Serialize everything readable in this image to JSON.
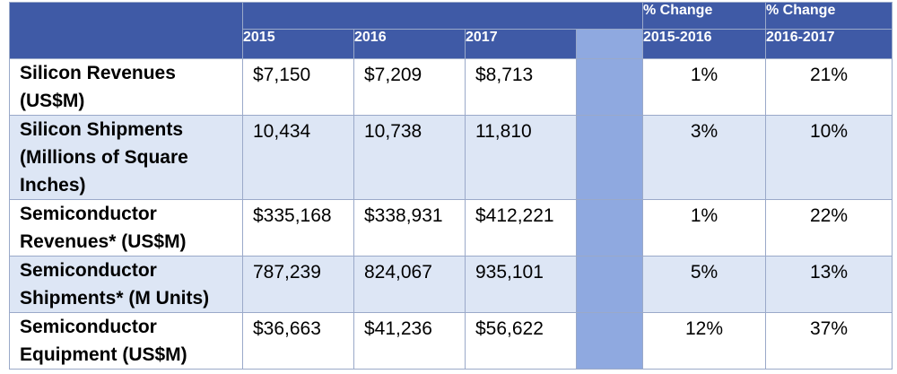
{
  "header": {
    "years": [
      "2015",
      "2016",
      "2017"
    ],
    "pct_change_label": "% Change",
    "pct_ranges": [
      "2015-2016",
      "2016-2017"
    ]
  },
  "rows": [
    {
      "label": "Silicon Revenues (US$M)",
      "v2015": "$7,150",
      "v2016": "$7,209",
      "v2017": "$8,713",
      "chg1": "1%",
      "chg2": "21%"
    },
    {
      "label": "Silicon Shipments (Millions of Square Inches)",
      "v2015": "10,434",
      "v2016": "10,738",
      "v2017": "11,810",
      "chg1": "3%",
      "chg2": "10%"
    },
    {
      "label": "Semiconductor Revenues* (US$M)",
      "v2015": "$335,168",
      "v2016": "$338,931",
      "v2017": "$412,221",
      "chg1": "1%",
      "chg2": "22%"
    },
    {
      "label": "Semiconductor Shipments* (M Units)",
      "v2015": "787,239",
      "v2016": "824,067",
      "v2017": "935,101",
      "chg1": "5%",
      "chg2": "13%"
    },
    {
      "label": "Semiconductor Equipment (US$M)",
      "v2015": "$36,663",
      "v2016": "$41,236",
      "v2017": "$56,622",
      "chg1": "12%",
      "chg2": "37%"
    }
  ],
  "colors": {
    "header_bg": "#3f5aa6",
    "separator": "#8fa9e0",
    "row_alt": "#dde6f5",
    "border": "#9aa9c9"
  }
}
